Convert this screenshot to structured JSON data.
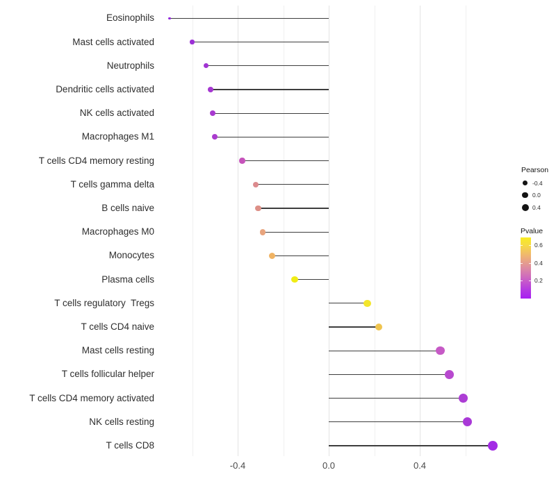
{
  "figure": {
    "background": "#ffffff",
    "stem_color": "#3d3d3d"
  },
  "chart_data": {
    "type": "scatter",
    "subtype": "horizontal-lollipop",
    "title": "",
    "xlabel": "",
    "ylabel": "",
    "x_axis": {
      "range": [
        -0.75,
        0.78
      ],
      "ticks": [
        -0.4,
        0.0,
        0.4
      ],
      "tick_labels": [
        "-0.4",
        "0.0",
        "0.4"
      ],
      "gridlines_major": [
        -0.4,
        0.0,
        0.4
      ],
      "gridlines_minor": [
        -0.6,
        -0.2,
        0.2,
        0.6
      ],
      "zero_baseline": 0.0
    },
    "points": [
      {
        "label": "Eosinophils",
        "pearson": -0.7,
        "dot_color": "#9127DC",
        "dot_radius_px": 1.8
      },
      {
        "label": "Mast cells activated",
        "pearson": -0.6,
        "dot_color": "#9C2FD6",
        "dot_radius_px": 3.2
      },
      {
        "label": "Neutrophils",
        "pearson": -0.54,
        "dot_color": "#A134D3",
        "dot_radius_px": 3.6
      },
      {
        "label": "Dendritic cells activated",
        "pearson": -0.52,
        "dot_color": "#A537D1",
        "dot_radius_px": 3.9
      },
      {
        "label": "NK cells activated",
        "pearson": -0.51,
        "dot_color": "#A83AD0",
        "dot_radius_px": 4.0
      },
      {
        "label": "Macrophages M1",
        "pearson": -0.5,
        "dot_color": "#AA3CCE",
        "dot_radius_px": 4.1
      },
      {
        "label": "T cells CD4 memory resting",
        "pearson": -0.38,
        "dot_color": "#C653BB",
        "dot_radius_px": 4.2
      },
      {
        "label": "T cells gamma delta",
        "pearson": -0.32,
        "dot_color": "#DC8B8E",
        "dot_radius_px": 4.3
      },
      {
        "label": "B cells naive",
        "pearson": -0.31,
        "dot_color": "#DD9087",
        "dot_radius_px": 4.35
      },
      {
        "label": "Macrophages M0",
        "pearson": -0.29,
        "dot_color": "#E8A47D",
        "dot_radius_px": 4.4
      },
      {
        "label": "Monocytes",
        "pearson": -0.25,
        "dot_color": "#F0B363",
        "dot_radius_px": 4.6
      },
      {
        "label": "Plasma cells",
        "pearson": -0.15,
        "dot_color": "#F0EC15",
        "dot_radius_px": 4.8
      },
      {
        "label": "T cells regulatory  Tregs",
        "pearson": 0.17,
        "dot_color": "#F3E62B",
        "dot_radius_px": 5.2
      },
      {
        "label": "T cells CD4 naive",
        "pearson": 0.22,
        "dot_color": "#EFC44F",
        "dot_radius_px": 5.4
      },
      {
        "label": "Mast cells resting",
        "pearson": 0.49,
        "dot_color": "#C65AC6",
        "dot_radius_px": 6.2
      },
      {
        "label": "T cells follicular helper",
        "pearson": 0.53,
        "dot_color": "#B849CF",
        "dot_radius_px": 6.4
      },
      {
        "label": "T cells CD4 memory activated",
        "pearson": 0.59,
        "dot_color": "#AC3DD4",
        "dot_radius_px": 6.6
      },
      {
        "label": "NK cells resting",
        "pearson": 0.61,
        "dot_color": "#A939D7",
        "dot_radius_px": 6.7
      },
      {
        "label": "T cells CD8",
        "pearson": 0.72,
        "dot_color": "#A32BE5",
        "dot_radius_px": 7.2
      }
    ],
    "legend": {
      "position": "right",
      "size": {
        "title": "Pearson",
        "dot_color": "#141414",
        "entries": [
          {
            "label": "-0.4",
            "radius_px": 3.4
          },
          {
            "label": "0.0",
            "radius_px": 4.4
          },
          {
            "label": "0.4",
            "radius_px": 5.0
          }
        ]
      },
      "color": {
        "title": "Pvalue",
        "tick_labels": [
          "0.6",
          "0.4",
          "0.2"
        ],
        "gradient_stops": [
          {
            "pos": 0.0,
            "color": "#F8EC23"
          },
          {
            "pos": 0.12,
            "color": "#F6DC42"
          },
          {
            "pos": 0.3,
            "color": "#EFB472"
          },
          {
            "pos": 0.5,
            "color": "#DD8BA2"
          },
          {
            "pos": 0.68,
            "color": "#CB62C4"
          },
          {
            "pos": 0.85,
            "color": "#B53BE0"
          },
          {
            "pos": 1.0,
            "color": "#A81EF2"
          }
        ]
      }
    }
  }
}
